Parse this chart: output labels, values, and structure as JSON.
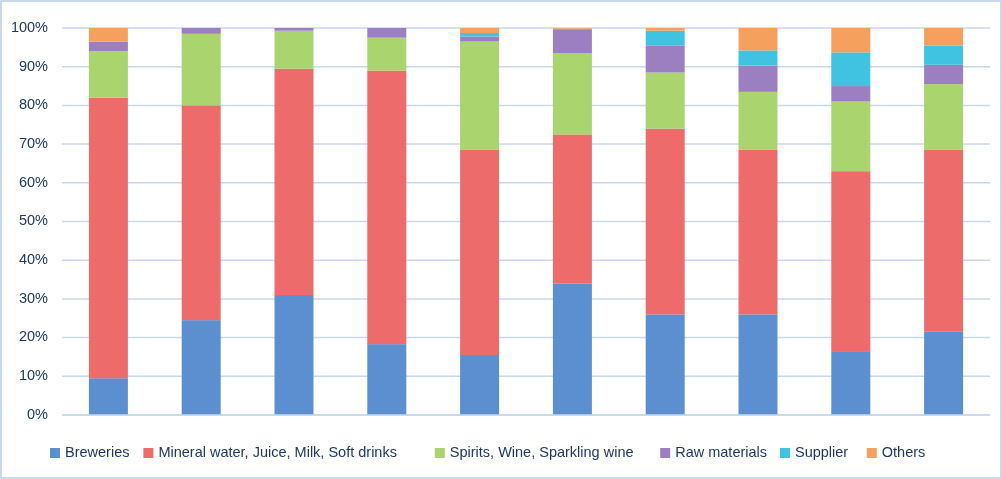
{
  "chart_data": {
    "type": "bar",
    "stacked": true,
    "categories": [
      null,
      null,
      null,
      null,
      null,
      null,
      null,
      null,
      null,
      null
    ],
    "series": [
      {
        "name": "Breweries",
        "color": "#5b8fd0",
        "values": [
          9.5,
          24.5,
          31,
          18.3,
          15.5,
          34,
          26,
          26,
          16.5,
          21.5
        ]
      },
      {
        "name": "Mineral water, Juice, Milk, Soft drinks",
        "color": "#ee6b6b",
        "values": [
          72.5,
          55.5,
          58.5,
          70.7,
          53,
          38.5,
          48,
          42.5,
          46.5,
          47
        ]
      },
      {
        "name": "Spirits, Wine, Sparkling wine",
        "color": "#a9d46e",
        "values": [
          12,
          18.5,
          9.8,
          8.5,
          28,
          21,
          14.5,
          15,
          18,
          17
        ]
      },
      {
        "name": "Raw materials",
        "color": "#9b7fc0",
        "values": [
          2.5,
          1.5,
          0.7,
          2.5,
          1.3,
          6,
          7,
          6.8,
          4,
          5
        ]
      },
      {
        "name": "Supplier",
        "color": "#3fc3e0",
        "values": [
          0,
          0,
          0,
          0,
          0.9,
          0.3,
          3.8,
          3.9,
          8.7,
          5
        ]
      },
      {
        "name": "Others",
        "color": "#f5a15d",
        "values": [
          3.5,
          0,
          0,
          0,
          1.3,
          0.2,
          0.7,
          5.8,
          6.3,
          4.5
        ]
      }
    ],
    "ylim": [
      0,
      100
    ],
    "yticks": [
      {
        "value": 0,
        "label": "0%"
      },
      {
        "value": 10,
        "label": "10%"
      },
      {
        "value": 20,
        "label": "20%"
      },
      {
        "value": 30,
        "label": "30%"
      },
      {
        "value": 40,
        "label": "40%"
      },
      {
        "value": 50,
        "label": "50%"
      },
      {
        "value": 60,
        "label": "60%"
      },
      {
        "value": 70,
        "label": "70%"
      },
      {
        "value": 80,
        "label": "80%"
      },
      {
        "value": 90,
        "label": "90%"
      },
      {
        "value": 100,
        "label": "100%"
      }
    ],
    "grid": "y",
    "legend": "bottom"
  }
}
